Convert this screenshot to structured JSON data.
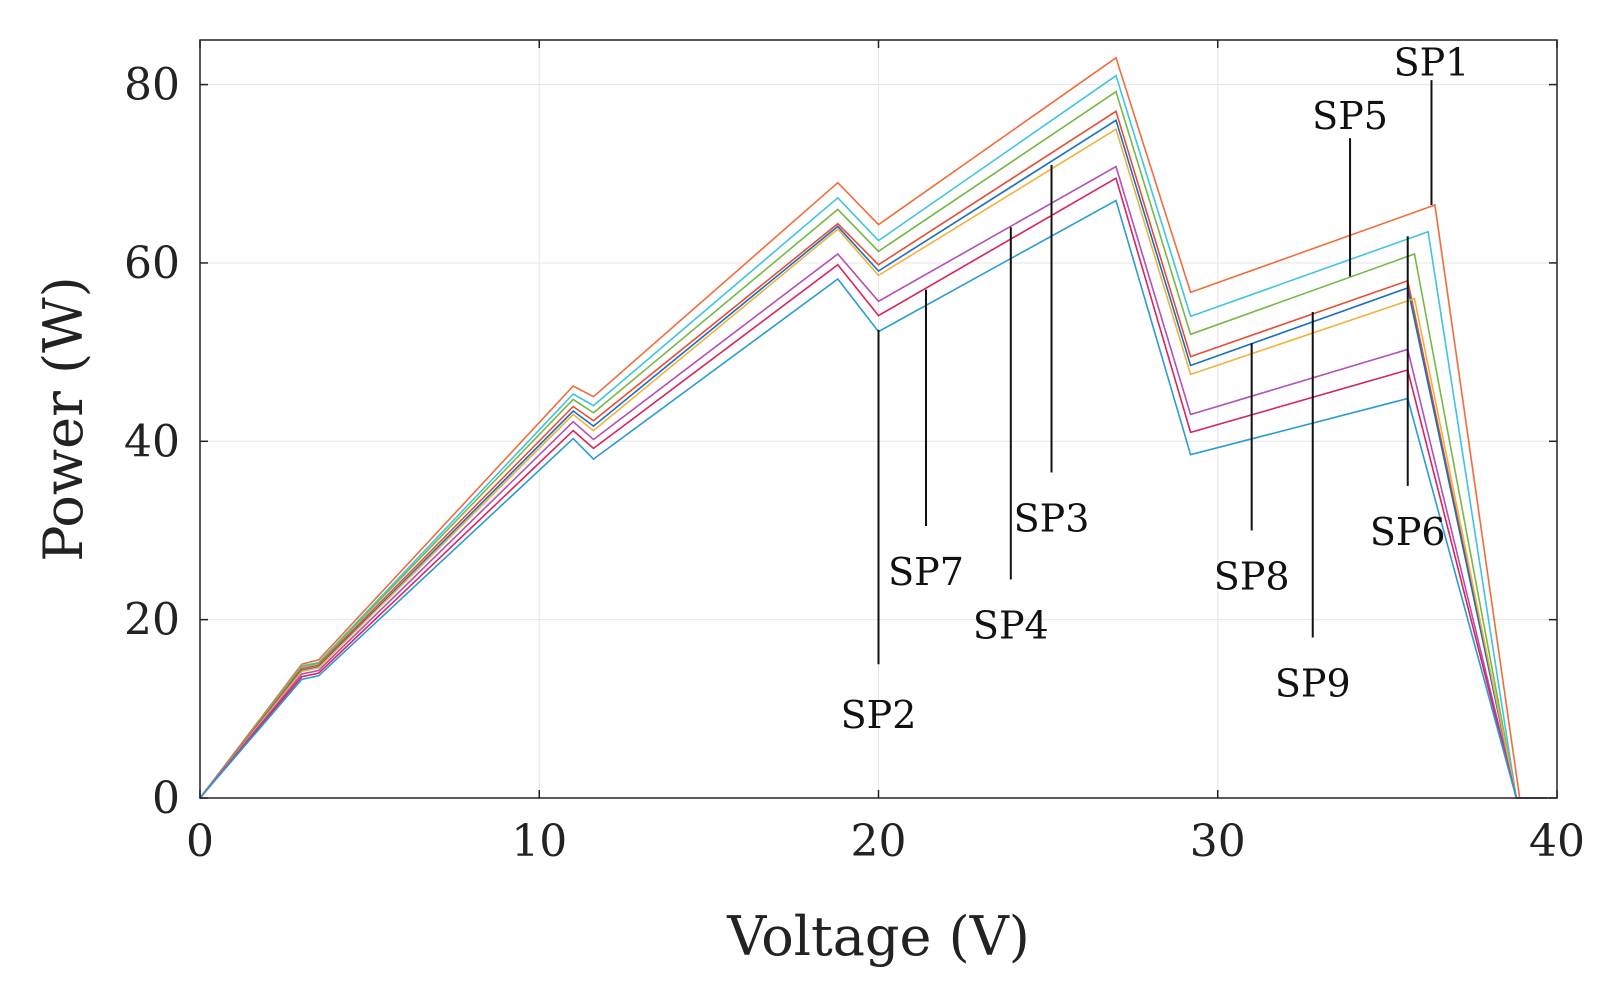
{
  "chart_data": {
    "type": "line",
    "title": "",
    "xlabel": "Voltage (V)",
    "ylabel": "Power (W)",
    "xlim": [
      0,
      40
    ],
    "ylim": [
      0,
      85
    ],
    "xticks": [
      0,
      10,
      20,
      30,
      40
    ],
    "yticks": [
      0,
      20,
      40,
      60,
      80
    ],
    "grid": true,
    "series": [
      {
        "color": "#f26c3b",
        "points": [
          [
            0,
            0
          ],
          [
            3,
            15
          ],
          [
            3.5,
            15.5
          ],
          [
            11,
            46.2
          ],
          [
            11.6,
            45
          ],
          [
            18.8,
            69
          ],
          [
            20,
            64.3
          ],
          [
            27,
            83
          ],
          [
            29.2,
            56.7
          ],
          [
            36.4,
            66.5
          ],
          [
            38.9,
            0
          ]
        ]
      },
      {
        "color": "#3fc3e6",
        "points": [
          [
            0,
            0
          ],
          [
            3,
            14.8
          ],
          [
            3.5,
            15.2
          ],
          [
            11,
            45.3
          ],
          [
            11.6,
            44
          ],
          [
            18.8,
            67.3
          ],
          [
            20,
            62.5
          ],
          [
            27,
            81
          ],
          [
            29.2,
            54
          ],
          [
            36.2,
            63.5
          ],
          [
            38.8,
            0
          ]
        ]
      },
      {
        "color": "#77b845",
        "points": [
          [
            0,
            0
          ],
          [
            3,
            14.7
          ],
          [
            3.5,
            15.1
          ],
          [
            11,
            44.7
          ],
          [
            11.6,
            43.2
          ],
          [
            18.8,
            66
          ],
          [
            20,
            61.3
          ],
          [
            27,
            79.2
          ],
          [
            29.2,
            52
          ],
          [
            35.8,
            61
          ],
          [
            38.8,
            0
          ]
        ]
      },
      {
        "color": "#e84d34",
        "points": [
          [
            0,
            0
          ],
          [
            3,
            14.5
          ],
          [
            3.5,
            14.9
          ],
          [
            11,
            43.9
          ],
          [
            11.6,
            42.3
          ],
          [
            18.8,
            64.4
          ],
          [
            20,
            59.8
          ],
          [
            27,
            77
          ],
          [
            29.2,
            49.5
          ],
          [
            35.6,
            58
          ],
          [
            38.8,
            0
          ]
        ]
      },
      {
        "color": "#1a6fc0",
        "points": [
          [
            0,
            0
          ],
          [
            3,
            14.3
          ],
          [
            3.5,
            14.7
          ],
          [
            11,
            43.4
          ],
          [
            11.6,
            41.7
          ],
          [
            18.8,
            64.1
          ],
          [
            20,
            59.1
          ],
          [
            27,
            76
          ],
          [
            29.2,
            48.5
          ],
          [
            35.6,
            57.2
          ],
          [
            38.8,
            0
          ]
        ]
      },
      {
        "color": "#f2b13a",
        "points": [
          [
            0,
            0
          ],
          [
            3,
            14.2
          ],
          [
            3.5,
            14.6
          ],
          [
            11,
            43
          ],
          [
            11.6,
            41.2
          ],
          [
            18.8,
            63.8
          ],
          [
            20,
            58.6
          ],
          [
            27,
            75
          ],
          [
            29.2,
            47.5
          ],
          [
            35.8,
            56
          ],
          [
            38.8,
            0
          ]
        ]
      },
      {
        "color": "#b24fb8",
        "points": [
          [
            0,
            0
          ],
          [
            3,
            13.9
          ],
          [
            3.5,
            14.3
          ],
          [
            11,
            42.2
          ],
          [
            11.6,
            40.2
          ],
          [
            18.8,
            61
          ],
          [
            20,
            55.7
          ],
          [
            27,
            70.8
          ],
          [
            29.2,
            43
          ],
          [
            35.6,
            50.3
          ],
          [
            38.8,
            0
          ]
        ]
      },
      {
        "color": "#d8245a",
        "points": [
          [
            0,
            0
          ],
          [
            3,
            13.6
          ],
          [
            3.5,
            14
          ],
          [
            11,
            41.2
          ],
          [
            11.6,
            39.2
          ],
          [
            18.8,
            59.8
          ],
          [
            20,
            54.1
          ],
          [
            27,
            69.5
          ],
          [
            29.2,
            41
          ],
          [
            35.6,
            48
          ],
          [
            38.8,
            0
          ]
        ]
      },
      {
        "color": "#2a9bd6",
        "points": [
          [
            0,
            0
          ],
          [
            3,
            13.3
          ],
          [
            3.5,
            13.7
          ],
          [
            11,
            40.3
          ],
          [
            11.6,
            38
          ],
          [
            18.8,
            58.2
          ],
          [
            20,
            52.3
          ],
          [
            27,
            67
          ],
          [
            29.2,
            38.5
          ],
          [
            35.6,
            44.8
          ],
          [
            38.8,
            0
          ]
        ]
      }
    ],
    "annotations": [
      {
        "label": "SP1",
        "x": 36.3,
        "y1": 66.5,
        "y2": 80.5,
        "text_x": 36.3,
        "text_y": 81
      },
      {
        "label": "SP5",
        "x": 33.9,
        "y1": 58.5,
        "y2": 74,
        "text_x": 33.9,
        "text_y": 75
      },
      {
        "label": "SP2",
        "x": 20,
        "y1": 52.5,
        "y2": 15,
        "text_x": 20,
        "text_y": 11
      },
      {
        "label": "SP7",
        "x": 21.4,
        "y1": 57,
        "y2": 30.5,
        "text_x": 21.4,
        "text_y": 27
      },
      {
        "label": "SP4",
        "x": 23.9,
        "y1": 64,
        "y2": 24.5,
        "text_x": 23.9,
        "text_y": 21
      },
      {
        "label": "SP3",
        "x": 25.1,
        "y1": 71,
        "y2": 36.5,
        "text_x": 25.1,
        "text_y": 33
      },
      {
        "label": "SP8",
        "x": 31,
        "y1": 51,
        "y2": 30,
        "text_x": 31,
        "text_y": 26.5
      },
      {
        "label": "SP9",
        "x": 32.8,
        "y1": 54.5,
        "y2": 18,
        "text_x": 32.8,
        "text_y": 14.5
      },
      {
        "label": "SP6",
        "x": 35.6,
        "y1": 63,
        "y2": 35,
        "text_x": 35.6,
        "text_y": 31.5
      }
    ]
  }
}
